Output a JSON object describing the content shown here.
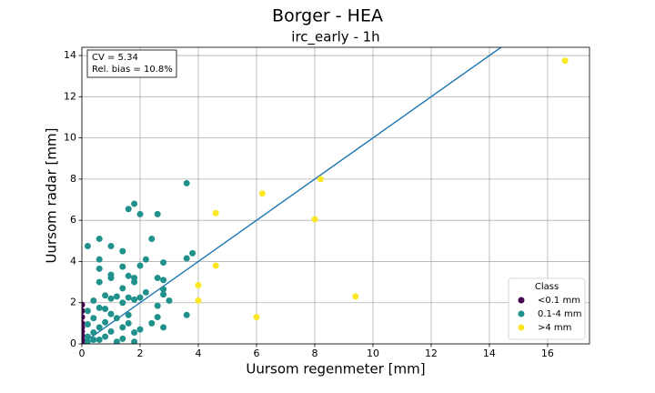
{
  "chart_data": {
    "type": "scatter",
    "title": "Borger - HEA",
    "subtitle": "irc_early - 1h",
    "x_label": "Uursom regenmeter [mm]",
    "y_label": "Uursom radar [mm]",
    "annotation": [
      "CV = 5.34",
      "Rel. bias = 10.8%"
    ],
    "legend_title": "Class",
    "legend": "lower right",
    "grid": true,
    "xlim": [
      0,
      17.44
    ],
    "xticks": [
      0,
      2,
      4,
      6,
      8,
      10,
      12,
      14,
      16
    ],
    "ylim": [
      0,
      14.4
    ],
    "yticks": [
      0,
      2,
      4,
      6,
      8,
      10,
      12,
      14
    ],
    "series": [
      {
        "name": "<0.1 mm",
        "color": "#440154",
        "x": [
          0,
          0,
          0,
          0,
          0,
          0,
          0,
          0,
          0,
          0.05
        ],
        "values": [
          1.9,
          1.6,
          1.3,
          1.0,
          0.8,
          0.6,
          0.4,
          0.2,
          0.05,
          0.1
        ]
      },
      {
        "name": "0.1-4 mm",
        "color": "#21918c",
        "x": [
          3.6,
          1.8,
          1.6,
          2.0,
          2.6,
          0.2,
          0.6,
          1.0,
          2.4,
          1.4,
          3.8,
          0.6,
          2.2,
          2.8,
          3.6,
          2.0,
          1.4,
          0.6,
          1.0,
          1.6,
          1.0,
          2.6,
          2.8,
          1.8,
          1.8,
          0.6,
          1.4,
          2.8,
          2.2,
          2.8,
          0.8,
          1.2,
          1.6,
          1.8,
          2.0,
          0.4,
          1.0,
          3.0,
          1.4,
          2.6,
          0.6,
          0.2,
          3.6,
          0.8,
          1.0,
          1.6,
          2.6,
          0.4,
          1.2,
          2.4,
          0.8,
          1.6,
          2.8,
          0.2,
          0.6,
          1.4,
          2.0,
          1.0,
          1.8,
          0.4,
          0.2,
          0.8,
          1.4,
          1.8,
          0.6,
          0.2,
          1.2,
          0.4
        ],
        "values": [
          7.8,
          6.8,
          6.55,
          6.3,
          6.3,
          4.75,
          5.1,
          4.75,
          5.1,
          4.5,
          4.4,
          4.1,
          4.1,
          3.95,
          4.15,
          3.8,
          3.75,
          3.65,
          3.35,
          3.3,
          3.2,
          3.2,
          3.1,
          3.2,
          3.0,
          3.0,
          2.7,
          2.65,
          2.5,
          2.4,
          2.35,
          2.3,
          2.25,
          2.15,
          2.25,
          2.1,
          2.2,
          2.1,
          2.0,
          1.85,
          1.75,
          1.6,
          1.4,
          1.7,
          1.45,
          1.4,
          1.3,
          1.25,
          1.25,
          1.0,
          1.05,
          1.0,
          0.8,
          0.95,
          0.8,
          0.8,
          0.7,
          0.6,
          0.55,
          0.55,
          0.35,
          0.35,
          0.25,
          0.1,
          0.2,
          0.1,
          0.1,
          0.2
        ]
      },
      {
        "name": ">4 mm",
        "color": "#fde725",
        "x": [
          16.6,
          8.2,
          6.2,
          8.0,
          4.6,
          4.6,
          4.0,
          4.0,
          9.4,
          6.0
        ],
        "values": [
          13.75,
          8.0,
          7.3,
          6.05,
          6.35,
          3.8,
          2.85,
          2.1,
          2.3,
          1.3
        ]
      }
    ]
  }
}
